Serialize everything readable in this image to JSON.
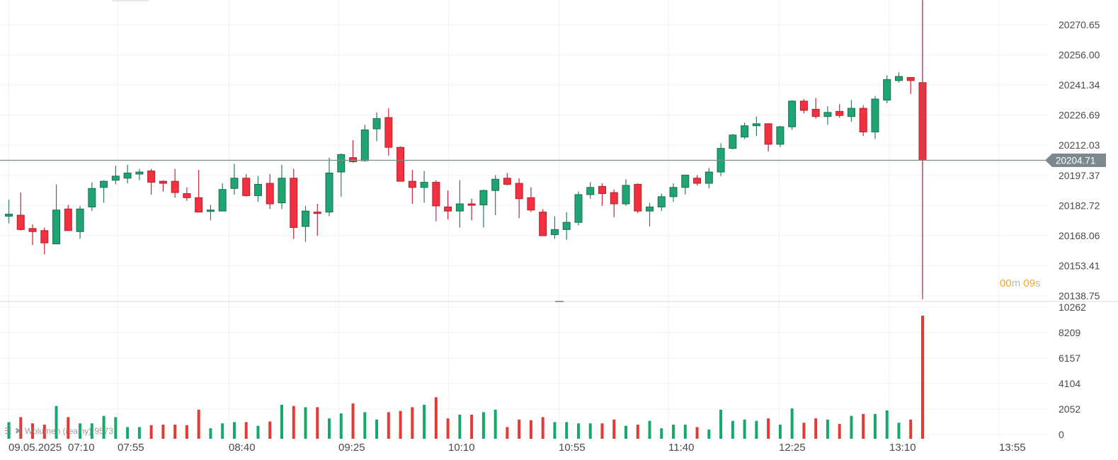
{
  "chart_data": {
    "type": "candlestick",
    "title": "",
    "timeframe_minutes": 15,
    "date_label": "09.05.2025",
    "x_tick_labels": [
      "09.05.2025",
      "07:10",
      "07:55",
      "08:40",
      "09:25",
      "10:10",
      "10:55",
      "11:40",
      "12:25",
      "13:10",
      "13:55"
    ],
    "price_axis": {
      "ticks": [
        20270.65,
        20256.0,
        20241.34,
        20226.69,
        20212.03,
        20197.37,
        20182.72,
        20168.06,
        20153.41,
        20138.75
      ],
      "range": [
        20138.75,
        20277.0
      ]
    },
    "last_price": 20204.71,
    "last_price_label": "20204.71",
    "volume_axis": {
      "ticks": [
        10262,
        8209,
        6157,
        4104,
        2052,
        0
      ],
      "range": [
        0,
        10262
      ]
    },
    "grid": true,
    "colors": {
      "up": "#1fa573",
      "down": "#f2303f",
      "vol_up": "#13a86c",
      "vol_down": "#e53935",
      "last_price_line": "#7d8c8a",
      "badge": "#7c8a8f",
      "crosshair": "#a0525a"
    },
    "candles": [
      {
        "o": 20177.5,
        "h": 20185.5,
        "l": 20174.0,
        "c": 20178.5,
        "v": 1000
      },
      {
        "o": 20178.0,
        "h": 20189.0,
        "l": 20170.5,
        "c": 20171.0,
        "v": 1400
      },
      {
        "o": 20171.5,
        "h": 20173.5,
        "l": 20163.5,
        "c": 20170.0,
        "v": 900
      },
      {
        "o": 20170.5,
        "h": 20172.0,
        "l": 20159.0,
        "c": 20164.5,
        "v": 800
      },
      {
        "o": 20164.0,
        "h": 20193.0,
        "l": 20164.0,
        "c": 20180.5,
        "v": 2300
      },
      {
        "o": 20181.0,
        "h": 20183.0,
        "l": 20171.5,
        "c": 20170.5,
        "v": 1400
      },
      {
        "o": 20170.0,
        "h": 20182.5,
        "l": 20166.5,
        "c": 20181.0,
        "v": 900
      },
      {
        "o": 20182.0,
        "h": 20194.0,
        "l": 20180.0,
        "c": 20191.0,
        "v": 900
      },
      {
        "o": 20191.5,
        "h": 20195.0,
        "l": 20184.0,
        "c": 20194.5,
        "v": 1500
      },
      {
        "o": 20195.0,
        "h": 20202.0,
        "l": 20193.0,
        "c": 20197.0,
        "v": 1400
      },
      {
        "o": 20196.0,
        "h": 20202.5,
        "l": 20193.5,
        "c": 20198.5,
        "v": 600
      },
      {
        "o": 20198.0,
        "h": 20200.5,
        "l": 20195.0,
        "c": 20199.0,
        "v": 600
      },
      {
        "o": 20199.5,
        "h": 20200.5,
        "l": 20188.0,
        "c": 20194.0,
        "v": 750
      },
      {
        "o": 20194.5,
        "h": 20195.0,
        "l": 20189.5,
        "c": 20193.5,
        "v": 800
      },
      {
        "o": 20194.5,
        "h": 20200.5,
        "l": 20186.5,
        "c": 20189.0,
        "v": 800
      },
      {
        "o": 20188.5,
        "h": 20191.5,
        "l": 20185.0,
        "c": 20186.5,
        "v": 750
      },
      {
        "o": 20186.5,
        "h": 20200.0,
        "l": 20181.0,
        "c": 20179.5,
        "v": 2000
      },
      {
        "o": 20180.0,
        "h": 20183.0,
        "l": 20175.5,
        "c": 20180.5,
        "v": 500
      },
      {
        "o": 20180.0,
        "h": 20193.5,
        "l": 20180.0,
        "c": 20190.5,
        "v": 900
      },
      {
        "o": 20191.0,
        "h": 20203.0,
        "l": 20188.0,
        "c": 20196.0,
        "v": 1000
      },
      {
        "o": 20196.0,
        "h": 20198.0,
        "l": 20187.0,
        "c": 20187.5,
        "v": 1000
      },
      {
        "o": 20187.5,
        "h": 20197.0,
        "l": 20184.5,
        "c": 20193.0,
        "v": 700
      },
      {
        "o": 20193.5,
        "h": 20198.0,
        "l": 20181.0,
        "c": 20183.5,
        "v": 1050
      },
      {
        "o": 20184.0,
        "h": 20202.5,
        "l": 20181.0,
        "c": 20196.0,
        "v": 2400
      },
      {
        "o": 20196.0,
        "h": 20200.5,
        "l": 20166.5,
        "c": 20172.0,
        "v": 2300
      },
      {
        "o": 20172.5,
        "h": 20182.5,
        "l": 20165.0,
        "c": 20180.0,
        "v": 2200
      },
      {
        "o": 20179.5,
        "h": 20183.5,
        "l": 20168.0,
        "c": 20179.0,
        "v": 2200
      },
      {
        "o": 20179.5,
        "h": 20206.0,
        "l": 20177.5,
        "c": 20198.5,
        "v": 1300
      },
      {
        "o": 20199.0,
        "h": 20208.0,
        "l": 20187.0,
        "c": 20207.5,
        "v": 1700
      },
      {
        "o": 20206.0,
        "h": 20214.5,
        "l": 20203.5,
        "c": 20204.0,
        "v": 2500
      },
      {
        "o": 20204.5,
        "h": 20222.0,
        "l": 20204.0,
        "c": 20219.5,
        "v": 1800
      },
      {
        "o": 20220.0,
        "h": 20228.0,
        "l": 20214.0,
        "c": 20225.0,
        "v": 1200
      },
      {
        "o": 20225.5,
        "h": 20230.0,
        "l": 20207.0,
        "c": 20211.0,
        "v": 1800
      },
      {
        "o": 20211.0,
        "h": 20211.5,
        "l": 20196.0,
        "c": 20194.5,
        "v": 1900
      },
      {
        "o": 20194.5,
        "h": 20200.0,
        "l": 20183.5,
        "c": 20191.5,
        "v": 2200
      },
      {
        "o": 20191.5,
        "h": 20199.5,
        "l": 20184.0,
        "c": 20194.0,
        "v": 2400
      },
      {
        "o": 20194.0,
        "h": 20195.0,
        "l": 20175.0,
        "c": 20182.5,
        "v": 3000
      },
      {
        "o": 20182.0,
        "h": 20190.0,
        "l": 20176.0,
        "c": 20180.0,
        "v": 1300
      },
      {
        "o": 20180.0,
        "h": 20195.0,
        "l": 20172.0,
        "c": 20183.5,
        "v": 1600
      },
      {
        "o": 20183.5,
        "h": 20186.0,
        "l": 20175.5,
        "c": 20183.0,
        "v": 1600
      },
      {
        "o": 20183.0,
        "h": 20190.5,
        "l": 20172.0,
        "c": 20190.0,
        "v": 1800
      },
      {
        "o": 20190.0,
        "h": 20197.5,
        "l": 20178.0,
        "c": 20195.5,
        "v": 2000
      },
      {
        "o": 20196.0,
        "h": 20198.5,
        "l": 20192.5,
        "c": 20193.0,
        "v": 600
      },
      {
        "o": 20193.5,
        "h": 20196.0,
        "l": 20176.5,
        "c": 20186.0,
        "v": 1200
      },
      {
        "o": 20186.5,
        "h": 20191.5,
        "l": 20179.5,
        "c": 20180.5,
        "v": 1150
      },
      {
        "o": 20179.5,
        "h": 20181.0,
        "l": 20168.5,
        "c": 20168.0,
        "v": 1400
      },
      {
        "o": 20168.5,
        "h": 20177.5,
        "l": 20166.5,
        "c": 20171.0,
        "v": 1000
      },
      {
        "o": 20171.0,
        "h": 20179.5,
        "l": 20166.0,
        "c": 20174.5,
        "v": 1000
      },
      {
        "o": 20174.5,
        "h": 20189.5,
        "l": 20173.0,
        "c": 20188.0,
        "v": 900
      },
      {
        "o": 20188.0,
        "h": 20194.0,
        "l": 20186.0,
        "c": 20191.5,
        "v": 900
      },
      {
        "o": 20192.0,
        "h": 20193.5,
        "l": 20182.5,
        "c": 20188.5,
        "v": 900
      },
      {
        "o": 20189.0,
        "h": 20190.5,
        "l": 20177.0,
        "c": 20183.5,
        "v": 1200
      },
      {
        "o": 20183.5,
        "h": 20195.5,
        "l": 20182.5,
        "c": 20192.5,
        "v": 700
      },
      {
        "o": 20193.0,
        "h": 20193.5,
        "l": 20179.0,
        "c": 20180.0,
        "v": 800
      },
      {
        "o": 20180.0,
        "h": 20184.0,
        "l": 20172.5,
        "c": 20182.0,
        "v": 1100
      },
      {
        "o": 20182.0,
        "h": 20188.5,
        "l": 20180.0,
        "c": 20187.0,
        "v": 500
      },
      {
        "o": 20187.0,
        "h": 20193.5,
        "l": 20184.5,
        "c": 20191.5,
        "v": 800
      },
      {
        "o": 20191.5,
        "h": 20197.5,
        "l": 20188.0,
        "c": 20197.5,
        "v": 800
      },
      {
        "o": 20196.0,
        "h": 20197.5,
        "l": 20192.5,
        "c": 20193.5,
        "v": 600
      },
      {
        "o": 20193.5,
        "h": 20201.0,
        "l": 20191.0,
        "c": 20199.0,
        "v": 400
      },
      {
        "o": 20199.0,
        "h": 20213.0,
        "l": 20197.0,
        "c": 20210.5,
        "v": 2000
      },
      {
        "o": 20210.5,
        "h": 20217.5,
        "l": 20210.0,
        "c": 20217.0,
        "v": 1100
      },
      {
        "o": 20216.0,
        "h": 20223.0,
        "l": 20215.0,
        "c": 20221.5,
        "v": 1200
      },
      {
        "o": 20221.5,
        "h": 20226.0,
        "l": 20216.5,
        "c": 20222.5,
        "v": 1100
      },
      {
        "o": 20222.5,
        "h": 20222.5,
        "l": 20209.0,
        "c": 20212.5,
        "v": 1300
      },
      {
        "o": 20212.5,
        "h": 20221.5,
        "l": 20211.0,
        "c": 20221.0,
        "v": 800
      },
      {
        "o": 20221.0,
        "h": 20234.0,
        "l": 20219.5,
        "c": 20233.5,
        "v": 2100
      },
      {
        "o": 20233.5,
        "h": 20234.5,
        "l": 20227.5,
        "c": 20229.0,
        "v": 950
      },
      {
        "o": 20229.5,
        "h": 20235.0,
        "l": 20225.0,
        "c": 20226.0,
        "v": 1300
      },
      {
        "o": 20226.0,
        "h": 20231.0,
        "l": 20222.0,
        "c": 20228.0,
        "v": 1200
      },
      {
        "o": 20228.5,
        "h": 20232.0,
        "l": 20225.5,
        "c": 20226.5,
        "v": 850
      },
      {
        "o": 20226.0,
        "h": 20234.0,
        "l": 20223.5,
        "c": 20230.0,
        "v": 1500
      },
      {
        "o": 20230.0,
        "h": 20231.5,
        "l": 20216.5,
        "c": 20218.5,
        "v": 1650
      },
      {
        "o": 20218.5,
        "h": 20236.0,
        "l": 20215.0,
        "c": 20234.5,
        "v": 1650
      },
      {
        "o": 20234.0,
        "h": 20246.0,
        "l": 20232.5,
        "c": 20244.0,
        "v": 1950
      },
      {
        "o": 20243.5,
        "h": 20247.5,
        "l": 20242.5,
        "c": 20245.5,
        "v": 950
      },
      {
        "o": 20245.0,
        "h": 20245.0,
        "l": 20237.0,
        "c": 20243.5,
        "v": 1200
      },
      {
        "o": 20242.5,
        "h": 20282.0,
        "l": 20137.0,
        "c": 20204.71,
        "v": 9573
      }
    ]
  },
  "overlay": {
    "countdown_minutes": "00",
    "countdown_m_unit": "m",
    "countdown_seconds": "09",
    "countdown_s_unit": "s"
  },
  "legend": {
    "label": "Wolumen (realny)",
    "value": "9573",
    "icons": [
      "settings-icon",
      "close-icon"
    ]
  }
}
